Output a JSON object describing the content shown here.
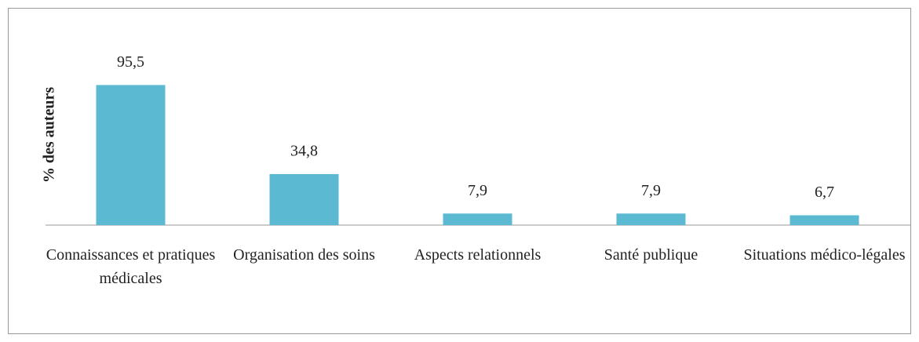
{
  "chart_data": {
    "type": "bar",
    "ylabel": "% des auteurs",
    "categories": [
      "Connaissances et pratiques médicales",
      "Organisation des soins",
      "Aspects relationnels",
      "Santé publique",
      "Situations médico-légales"
    ],
    "values": [
      95.5,
      34.8,
      7.9,
      7.9,
      6.7
    ],
    "value_labels": [
      "95,5",
      "34,8",
      "7,9",
      "7,9",
      "6,7"
    ],
    "color": "#5bb9d1",
    "ylim": [
      0,
      100
    ]
  }
}
